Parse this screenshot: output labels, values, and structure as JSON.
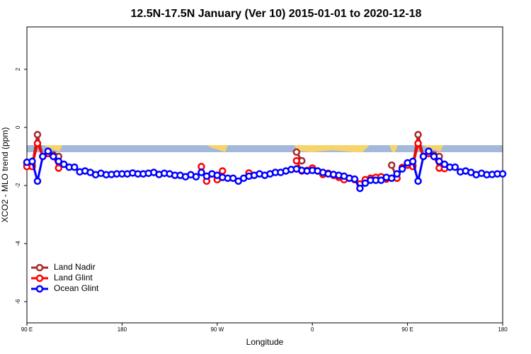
{
  "chart_data": {
    "type": "line",
    "title": "12.5N-17.5N January (Ver 10)   2015-01-01 to 2020-12-18",
    "x_label": "Longitude",
    "y_label": "XCO2 - MLO trend (ppm)",
    "x": [
      90,
      95,
      100,
      105,
      110,
      115,
      120,
      125,
      130,
      135,
      140,
      145,
      150,
      155,
      160,
      165,
      170,
      175,
      180,
      185,
      190,
      195,
      200,
      205,
      210,
      215,
      220,
      225,
      230,
      235,
      240,
      245,
      250,
      255,
      260,
      265,
      270,
      275,
      280,
      285,
      290,
      295,
      300,
      305,
      310,
      315,
      320,
      325,
      330,
      335,
      340,
      345,
      350,
      355,
      360,
      365,
      370,
      375,
      380,
      385,
      390,
      395,
      400,
      405,
      410,
      415,
      420,
      425,
      430,
      435,
      440,
      445,
      450,
      455,
      460,
      465,
      470,
      475,
      480,
      485,
      490,
      495,
      500,
      505,
      510,
      515,
      520,
      525,
      530,
      535,
      540
    ],
    "xlim": [
      90,
      540
    ],
    "xticks": [
      {
        "value": 90,
        "label": "90 E"
      },
      180,
      {
        "value": 270,
        "label": "90 W"
      },
      {
        "value": 360,
        "label": "0"
      },
      {
        "value": 450,
        "label": "90 E"
      },
      {
        "value": 540,
        "label": "180"
      }
    ],
    "ylim": [
      -6.73,
      3.46
    ],
    "yticks": [
      -6,
      -4,
      -2,
      0,
      2
    ],
    "grid": false,
    "legend": "bottomleft",
    "series": [
      {
        "name": "Land Nadir",
        "color": "#a52a2a",
        "values": [
          -1.3,
          -1.3,
          -0.25,
          -1.0,
          -0.9,
          -0.95,
          -1.0,
          null,
          null,
          null,
          null,
          null,
          null,
          null,
          null,
          null,
          null,
          null,
          null,
          null,
          null,
          null,
          null,
          null,
          null,
          null,
          null,
          null,
          null,
          null,
          null,
          null,
          null,
          null,
          null,
          null,
          null,
          null,
          null,
          null,
          null,
          null,
          null,
          null,
          null,
          null,
          null,
          null,
          null,
          null,
          null,
          -0.85,
          -1.15,
          null,
          null,
          null,
          null,
          null,
          null,
          null,
          null,
          null,
          null,
          null,
          null,
          null,
          null,
          null,
          null,
          -1.3,
          -1.75,
          null,
          null,
          -1.3,
          -0.25,
          -1.0,
          -0.9,
          -0.95,
          -1.0,
          null,
          null,
          null,
          null,
          null,
          null,
          null,
          null,
          null,
          null,
          null,
          null
        ]
      },
      {
        "name": "Land Glint",
        "color": "#ff0000",
        "values": [
          -1.35,
          -1.35,
          -0.55,
          -1.0,
          -0.9,
          -1.0,
          -1.4,
          null,
          null,
          null,
          null,
          null,
          null,
          null,
          null,
          null,
          null,
          null,
          null,
          null,
          null,
          null,
          null,
          null,
          null,
          null,
          null,
          null,
          null,
          null,
          null,
          null,
          null,
          -1.35,
          -1.85,
          -1.6,
          -1.8,
          -1.5,
          null,
          null,
          null,
          null,
          -1.57,
          null,
          null,
          null,
          null,
          null,
          null,
          null,
          null,
          -1.15,
          -1.5,
          -1.48,
          -1.4,
          -1.5,
          -1.62,
          -1.58,
          -1.65,
          -1.72,
          -1.8,
          -1.75,
          -1.8,
          -1.95,
          -1.8,
          -1.75,
          -1.72,
          -1.7,
          -1.78,
          -1.75,
          -1.75,
          -1.38,
          -1.3,
          -1.35,
          -0.55,
          -1.0,
          -0.9,
          -1.0,
          -1.4,
          -1.42,
          null,
          null,
          null,
          null,
          null,
          null,
          null,
          null,
          null,
          null,
          null
        ]
      },
      {
        "name": "Ocean Glint",
        "color": "#0000ff",
        "values": [
          -1.2,
          -1.17,
          -1.85,
          -1.0,
          -0.82,
          -1.0,
          -1.17,
          -1.27,
          -1.37,
          -1.37,
          -1.53,
          -1.5,
          -1.55,
          -1.63,
          -1.58,
          -1.63,
          -1.62,
          -1.6,
          -1.6,
          -1.6,
          -1.57,
          -1.6,
          -1.6,
          -1.58,
          -1.55,
          -1.62,
          -1.58,
          -1.6,
          -1.65,
          -1.65,
          -1.7,
          -1.63,
          -1.7,
          -1.55,
          -1.68,
          -1.6,
          -1.65,
          -1.72,
          -1.75,
          -1.75,
          -1.85,
          -1.75,
          -1.68,
          -1.65,
          -1.6,
          -1.65,
          -1.6,
          -1.55,
          -1.55,
          -1.5,
          -1.45,
          -1.43,
          -1.48,
          -1.5,
          -1.48,
          -1.5,
          -1.55,
          -1.6,
          -1.62,
          -1.65,
          -1.68,
          -1.75,
          -1.78,
          -2.1,
          -1.92,
          -1.82,
          -1.82,
          -1.82,
          -1.72,
          -1.75,
          -1.6,
          -1.43,
          -1.22,
          -1.17,
          -1.85,
          -1.0,
          -0.82,
          -1.0,
          -1.17,
          -1.27,
          -1.37,
          -1.37,
          -1.53,
          -1.5,
          -1.55,
          -1.63,
          -1.58,
          -1.63,
          -1.62,
          -1.6,
          -1.6
        ]
      }
    ]
  }
}
